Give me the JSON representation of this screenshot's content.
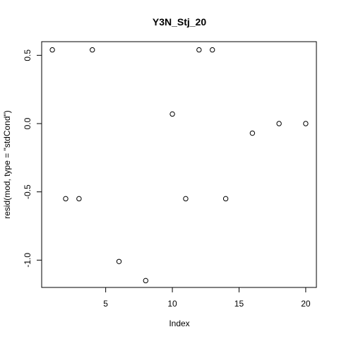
{
  "chart_data": {
    "type": "scatter",
    "title": "Y3N_Stj_20",
    "xlabel": "Index",
    "ylabel": "resid(mod, type = \"stdCond\")",
    "xlim": [
      0.2,
      20.8
    ],
    "ylim": [
      -1.2,
      0.6
    ],
    "xticks": [
      5,
      10,
      15,
      20
    ],
    "xtick_labels": [
      "5",
      "10",
      "15",
      "20"
    ],
    "yticks": [
      -1.0,
      -0.5,
      0.0,
      0.5
    ],
    "ytick_labels": [
      "-1.0",
      "-0.5",
      "0.0",
      "0.5"
    ],
    "grid": false,
    "marker": "open-circle",
    "points": [
      {
        "x": 1,
        "y": 0.54
      },
      {
        "x": 2,
        "y": -0.55
      },
      {
        "x": 3,
        "y": -0.55
      },
      {
        "x": 4,
        "y": 0.54
      },
      {
        "x": 6,
        "y": -1.01
      },
      {
        "x": 8,
        "y": -1.15
      },
      {
        "x": 10,
        "y": 0.07
      },
      {
        "x": 11,
        "y": -0.55
      },
      {
        "x": 12,
        "y": 0.54
      },
      {
        "x": 13,
        "y": 0.54
      },
      {
        "x": 14,
        "y": -0.55
      },
      {
        "x": 16,
        "y": -0.07
      },
      {
        "x": 18,
        "y": 0.0
      },
      {
        "x": 20,
        "y": 0.0
      }
    ]
  }
}
